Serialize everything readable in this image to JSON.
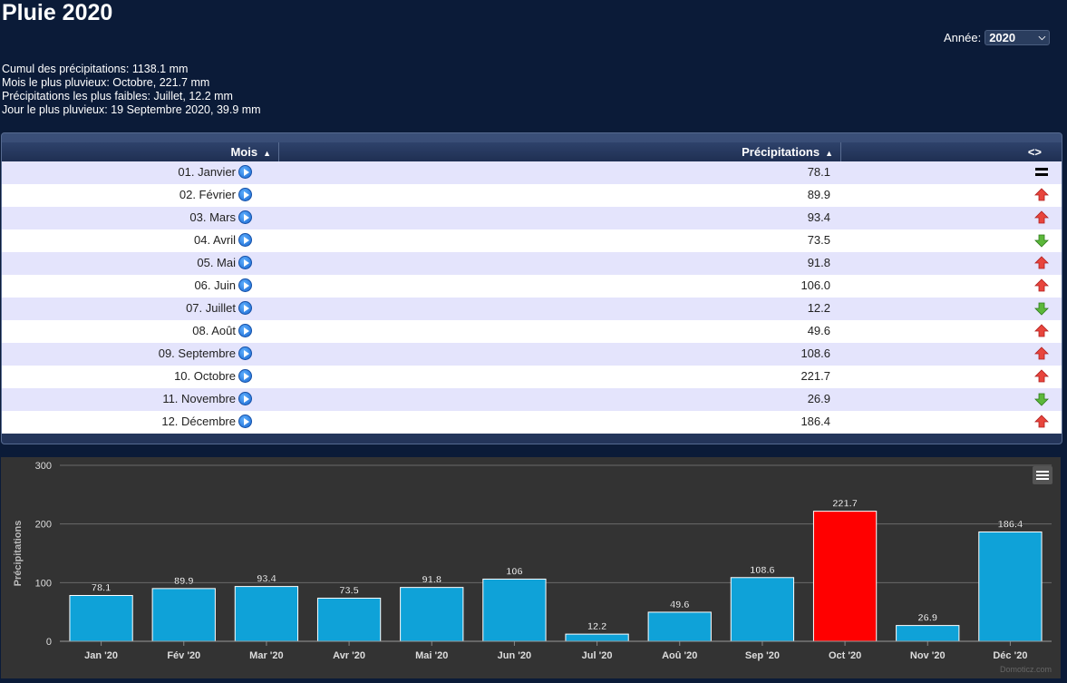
{
  "page": {
    "title": "Pluie 2020"
  },
  "year": {
    "label": "Année:",
    "selected": "2020"
  },
  "summary": {
    "line1": "Cumul des précipitations: 1138.1 mm",
    "line2": "Mois le plus pluvieux: Octobre, 221.7 mm",
    "line3": "Précipitations les plus faibles: Juillet, 12.2 mm",
    "line4": "Jour le plus pluvieux: 19 Septembre 2020, 39.9 mm"
  },
  "table": {
    "headers": {
      "mois": "Mois",
      "precipitations": "Précipitations",
      "trend": "<>"
    },
    "rows": [
      {
        "mois": "01. Janvier",
        "value": "78.1",
        "trend": "equal"
      },
      {
        "mois": "02. Février",
        "value": "89.9",
        "trend": "up"
      },
      {
        "mois": "03. Mars",
        "value": "93.4",
        "trend": "up"
      },
      {
        "mois": "04. Avril",
        "value": "73.5",
        "trend": "down"
      },
      {
        "mois": "05. Mai",
        "value": "91.8",
        "trend": "up"
      },
      {
        "mois": "06. Juin",
        "value": "106.0",
        "trend": "up"
      },
      {
        "mois": "07. Juillet",
        "value": "12.2",
        "trend": "down"
      },
      {
        "mois": "08. Août",
        "value": "49.6",
        "trend": "up"
      },
      {
        "mois": "09. Septembre",
        "value": "108.6",
        "trend": "up"
      },
      {
        "mois": "10. Octobre",
        "value": "221.7",
        "trend": "up"
      },
      {
        "mois": "11. Novembre",
        "value": "26.9",
        "trend": "down"
      },
      {
        "mois": "12. Décembre",
        "value": "186.4",
        "trend": "up"
      }
    ]
  },
  "colors": {
    "bar": "#0fa2d8",
    "bar_max": "#ff0000",
    "up": "#e8453c",
    "down": "#5cb83a"
  },
  "chart_data": {
    "type": "bar",
    "categories": [
      "Jan '20",
      "Fév '20",
      "Mar '20",
      "Avr '20",
      "Mai '20",
      "Jun '20",
      "Jul '20",
      "Aoû '20",
      "Sep '20",
      "Oct '20",
      "Nov '20",
      "Déc '20"
    ],
    "values": [
      78.1,
      89.9,
      93.4,
      73.5,
      91.8,
      106,
      12.2,
      49.6,
      108.6,
      221.7,
      26.9,
      186.4
    ],
    "data_labels": [
      "78.1",
      "89.9",
      "93.4",
      "73.5",
      "91.8",
      "106",
      "12.2",
      "49.6",
      "108.6",
      "221.7",
      "26.9",
      "186.4"
    ],
    "highlight_index": 9,
    "ylabel": "Précipitations",
    "ylim": [
      0,
      300
    ],
    "yticks": [
      "0",
      "100",
      "200",
      "300"
    ],
    "grid": true
  },
  "chart_credit": "Domoticz.com"
}
